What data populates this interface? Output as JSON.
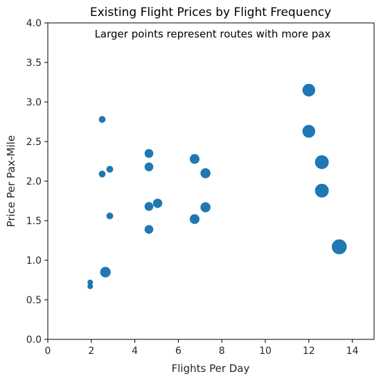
{
  "chart_data": {
    "type": "scatter",
    "title": "Existing Flight Prices by Flight Frequency",
    "xlabel": "Flights Per Day",
    "ylabel": "Price Per Pax-Mile",
    "annotation": "Larger points represent routes with more pax",
    "xlim": [
      0,
      15
    ],
    "ylim": [
      0,
      4.0
    ],
    "xticks": [
      0,
      2,
      4,
      6,
      8,
      10,
      12,
      14
    ],
    "xtick_labels": [
      "0",
      "2",
      "4",
      "6",
      "8",
      "10",
      "12",
      "14"
    ],
    "yticks": [
      0,
      0.5,
      1.0,
      1.5,
      2.0,
      2.5,
      3.0,
      3.5,
      4.0
    ],
    "ytick_labels": [
      "0.0",
      "0.5",
      "1.0",
      "1.5",
      "2.0",
      "2.5",
      "3.0",
      "3.5",
      "4.0"
    ],
    "grid": false,
    "point_color": "#1f77b4",
    "size_meaning": "relative passenger volume",
    "points": [
      {
        "x": 1.95,
        "y": 0.72,
        "size": 1
      },
      {
        "x": 1.95,
        "y": 0.67,
        "size": 1
      },
      {
        "x": 2.5,
        "y": 2.78,
        "size": 1.5
      },
      {
        "x": 2.5,
        "y": 2.09,
        "size": 1.5
      },
      {
        "x": 2.85,
        "y": 2.15,
        "size": 1.5
      },
      {
        "x": 2.85,
        "y": 1.56,
        "size": 1.5
      },
      {
        "x": 2.65,
        "y": 0.85,
        "size": 3.6
      },
      {
        "x": 4.65,
        "y": 2.35,
        "size": 2.5
      },
      {
        "x": 4.65,
        "y": 2.18,
        "size": 2.5
      },
      {
        "x": 4.65,
        "y": 1.68,
        "size": 2.5
      },
      {
        "x": 4.65,
        "y": 1.39,
        "size": 2.5
      },
      {
        "x": 5.05,
        "y": 1.72,
        "size": 2.8
      },
      {
        "x": 6.75,
        "y": 2.28,
        "size": 3.1
      },
      {
        "x": 6.75,
        "y": 1.52,
        "size": 3.1
      },
      {
        "x": 7.25,
        "y": 2.1,
        "size": 3.3
      },
      {
        "x": 7.25,
        "y": 1.67,
        "size": 3.3
      },
      {
        "x": 12.0,
        "y": 3.15,
        "size": 5.3
      },
      {
        "x": 12.0,
        "y": 2.63,
        "size": 5.3
      },
      {
        "x": 12.6,
        "y": 2.24,
        "size": 6.2
      },
      {
        "x": 12.6,
        "y": 1.88,
        "size": 6.2
      },
      {
        "x": 13.4,
        "y": 1.17,
        "size": 7.3
      }
    ]
  }
}
